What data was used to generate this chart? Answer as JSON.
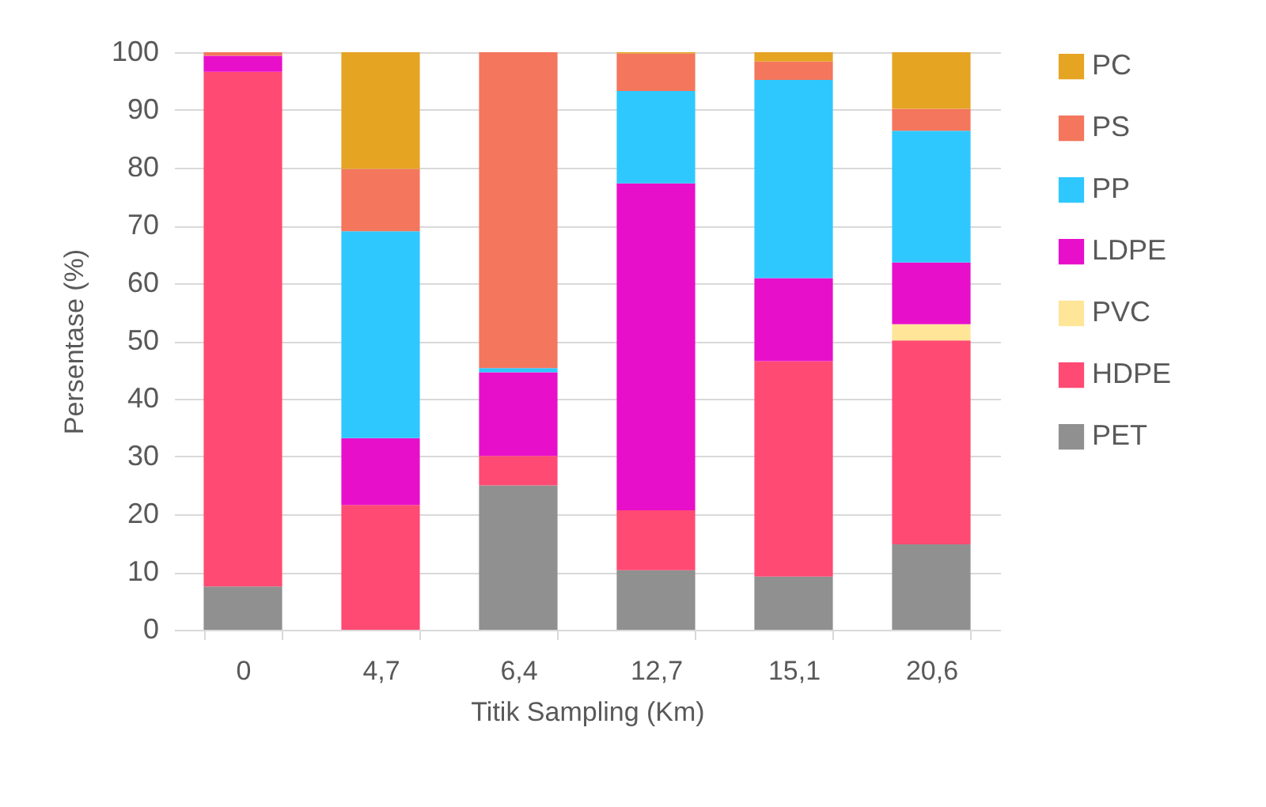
{
  "chart_data": {
    "type": "bar",
    "stacked": true,
    "xlabel": "Titik Sampling (Km)",
    "ylabel": "Persentase (%)",
    "categories": [
      "0",
      "4,7",
      "6,4",
      "12,7",
      "15,1",
      "20,6"
    ],
    "series": [
      {
        "name": "PET",
        "color": "#909090",
        "values": [
          7.5,
          null,
          25.0,
          10.3,
          9.2,
          14.8
        ]
      },
      {
        "name": "HDPE",
        "color": "#ff4a73",
        "values": [
          89.1,
          21.6,
          5.1,
          10.4,
          37.3,
          35.3
        ]
      },
      {
        "name": "PVC",
        "color": "#fee598",
        "values": [
          null,
          null,
          null,
          null,
          null,
          2.8
        ]
      },
      {
        "name": "LDPE",
        "color": "#e80fcb",
        "values": [
          2.8,
          11.6,
          14.5,
          56.6,
          14.4,
          10.7
        ]
      },
      {
        "name": "PP",
        "color": "#2ec8fe",
        "values": [
          null,
          35.8,
          0.7,
          16.0,
          34.3,
          22.8
        ]
      },
      {
        "name": "PS",
        "color": "#f4765c",
        "values": [
          0.6,
          10.8,
          54.7,
          6.5,
          3.2,
          3.8
        ]
      },
      {
        "name": "PC",
        "color": "#e6a423",
        "values": [
          null,
          20.2,
          null,
          0.2,
          1.6,
          9.8
        ]
      }
    ],
    "ylim": [
      0,
      100
    ],
    "yticks": [
      0,
      10,
      20,
      30,
      40,
      50,
      60,
      70,
      80,
      90,
      100
    ],
    "grid": "y",
    "legend": "right"
  }
}
